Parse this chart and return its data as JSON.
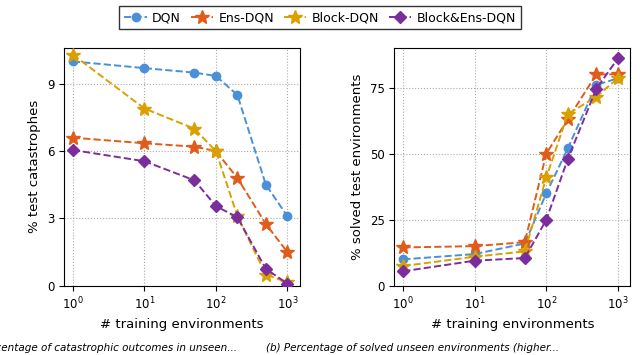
{
  "left_title": "% test catastrophes",
  "right_title": "% solved test environments",
  "xlabel": "# training environments",
  "left_data": {
    "DQN": {
      "x": [
        1,
        10,
        50,
        100,
        200,
        500,
        1000
      ],
      "y": [
        10.0,
        9.7,
        9.5,
        9.35,
        8.5,
        4.5,
        3.1
      ]
    },
    "Ens-DQN": {
      "x": [
        1,
        10,
        50,
        100,
        200,
        500,
        1000
      ],
      "y": [
        6.6,
        6.35,
        6.2,
        6.0,
        4.8,
        2.75,
        1.5
      ]
    },
    "Block-DQN": {
      "x": [
        1,
        10,
        50,
        100,
        200,
        500,
        1000
      ],
      "y": [
        10.3,
        7.9,
        7.0,
        6.0,
        3.1,
        0.5,
        0.15
      ]
    },
    "Block&Ens-DQN": {
      "x": [
        1,
        10,
        50,
        100,
        200,
        500,
        1000
      ],
      "y": [
        6.05,
        5.55,
        4.7,
        3.55,
        3.05,
        0.75,
        0.1
      ]
    }
  },
  "right_data": {
    "DQN": {
      "x": [
        1,
        10,
        50,
        100,
        200,
        500,
        1000
      ],
      "y": [
        10.0,
        12.0,
        16.0,
        35.0,
        52.0,
        76.0,
        78.5
      ]
    },
    "Ens-DQN": {
      "x": [
        1,
        10,
        50,
        100,
        200,
        500,
        1000
      ],
      "y": [
        14.5,
        15.0,
        16.5,
        50.0,
        63.0,
        80.0,
        80.0
      ]
    },
    "Block-DQN": {
      "x": [
        1,
        10,
        50,
        100,
        200,
        500,
        1000
      ],
      "y": [
        7.5,
        11.0,
        13.0,
        41.0,
        65.0,
        71.5,
        78.5
      ]
    },
    "Block&Ens-DQN": {
      "x": [
        1,
        10,
        50,
        100,
        200,
        500,
        1000
      ],
      "y": [
        5.5,
        9.5,
        10.5,
        25.0,
        48.0,
        74.5,
        86.0
      ]
    }
  },
  "colors": {
    "DQN": "#4a90d9",
    "Ens-DQN": "#e05c1a",
    "Block-DQN": "#daa000",
    "Block&Ens-DQN": "#7b2d9e"
  },
  "markers": {
    "DQN": "o",
    "Ens-DQN": "*",
    "Block-DQN": "*",
    "Block&Ens-DQN": "D"
  },
  "marker_sizes": {
    "DQN": 6,
    "Ens-DQN": 10,
    "Block-DQN": 10,
    "Block&Ens-DQN": 6
  },
  "legend_labels": [
    "DQN",
    "Ens-DQN",
    "Block-DQN",
    "Block&Ens-DQN"
  ],
  "left_ylim": [
    0,
    10.6
  ],
  "right_ylim": [
    0,
    90
  ],
  "left_yticks": [
    0,
    3,
    6,
    9
  ],
  "right_yticks": [
    0,
    25,
    50,
    75
  ],
  "caption_left": "(a) Percentage of catastrophic outcomes in unseen...",
  "caption_right": "(b) Percentage of solved unseen environments (higher..."
}
